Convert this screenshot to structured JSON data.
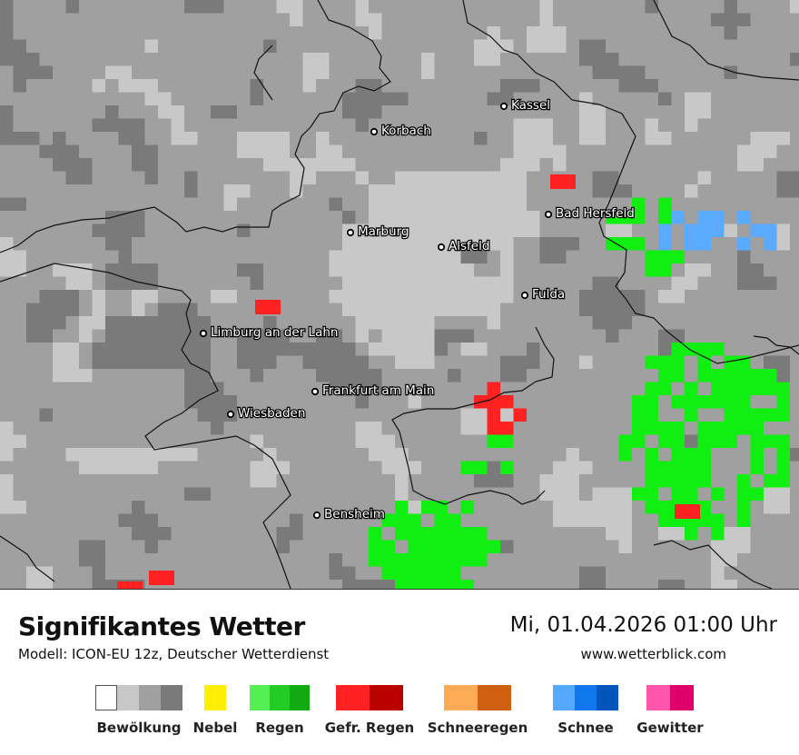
{
  "header": {
    "title": "Signifikantes Wetter",
    "model": "Modell: ICON-EU 12z, Deutscher Wetterdienst",
    "datetime": "Mi, 01.04.2026 01:00 Uhr",
    "website": "www.wetterblick.com"
  },
  "cities": [
    {
      "name": "Kassel"
    },
    {
      "name": "Korbach"
    },
    {
      "name": "Bad Hersfeld"
    },
    {
      "name": "Marburg"
    },
    {
      "name": "Alsfeld"
    },
    {
      "name": "Fulda"
    },
    {
      "name": "Limburg an der Lahn"
    },
    {
      "name": "Frankfurt am Main"
    },
    {
      "name": "Wiesbaden"
    },
    {
      "name": "Bensheim"
    }
  ],
  "legend": [
    {
      "label": "Bewölkung",
      "colors": [
        "#ffffff",
        "#c8c8c8",
        "#a0a0a0",
        "#7a7a7a"
      ]
    },
    {
      "label": "Nebel",
      "colors": [
        "#ffee00"
      ]
    },
    {
      "label": "Regen",
      "colors": [
        "#55ee55",
        "#22cc22",
        "#11aa11"
      ]
    },
    {
      "label": "Gefr. Regen",
      "colors": [
        "#ff2222",
        "#bb0000"
      ]
    },
    {
      "label": "Schneeregen",
      "colors": [
        "#ffaa55",
        "#d06010"
      ]
    },
    {
      "label": "Schnee",
      "colors": [
        "#55aaff",
        "#1177ee",
        "#0055bb"
      ]
    },
    {
      "label": "Gewitter",
      "colors": [
        "#ff55aa",
        "#e0006a"
      ]
    }
  ]
}
